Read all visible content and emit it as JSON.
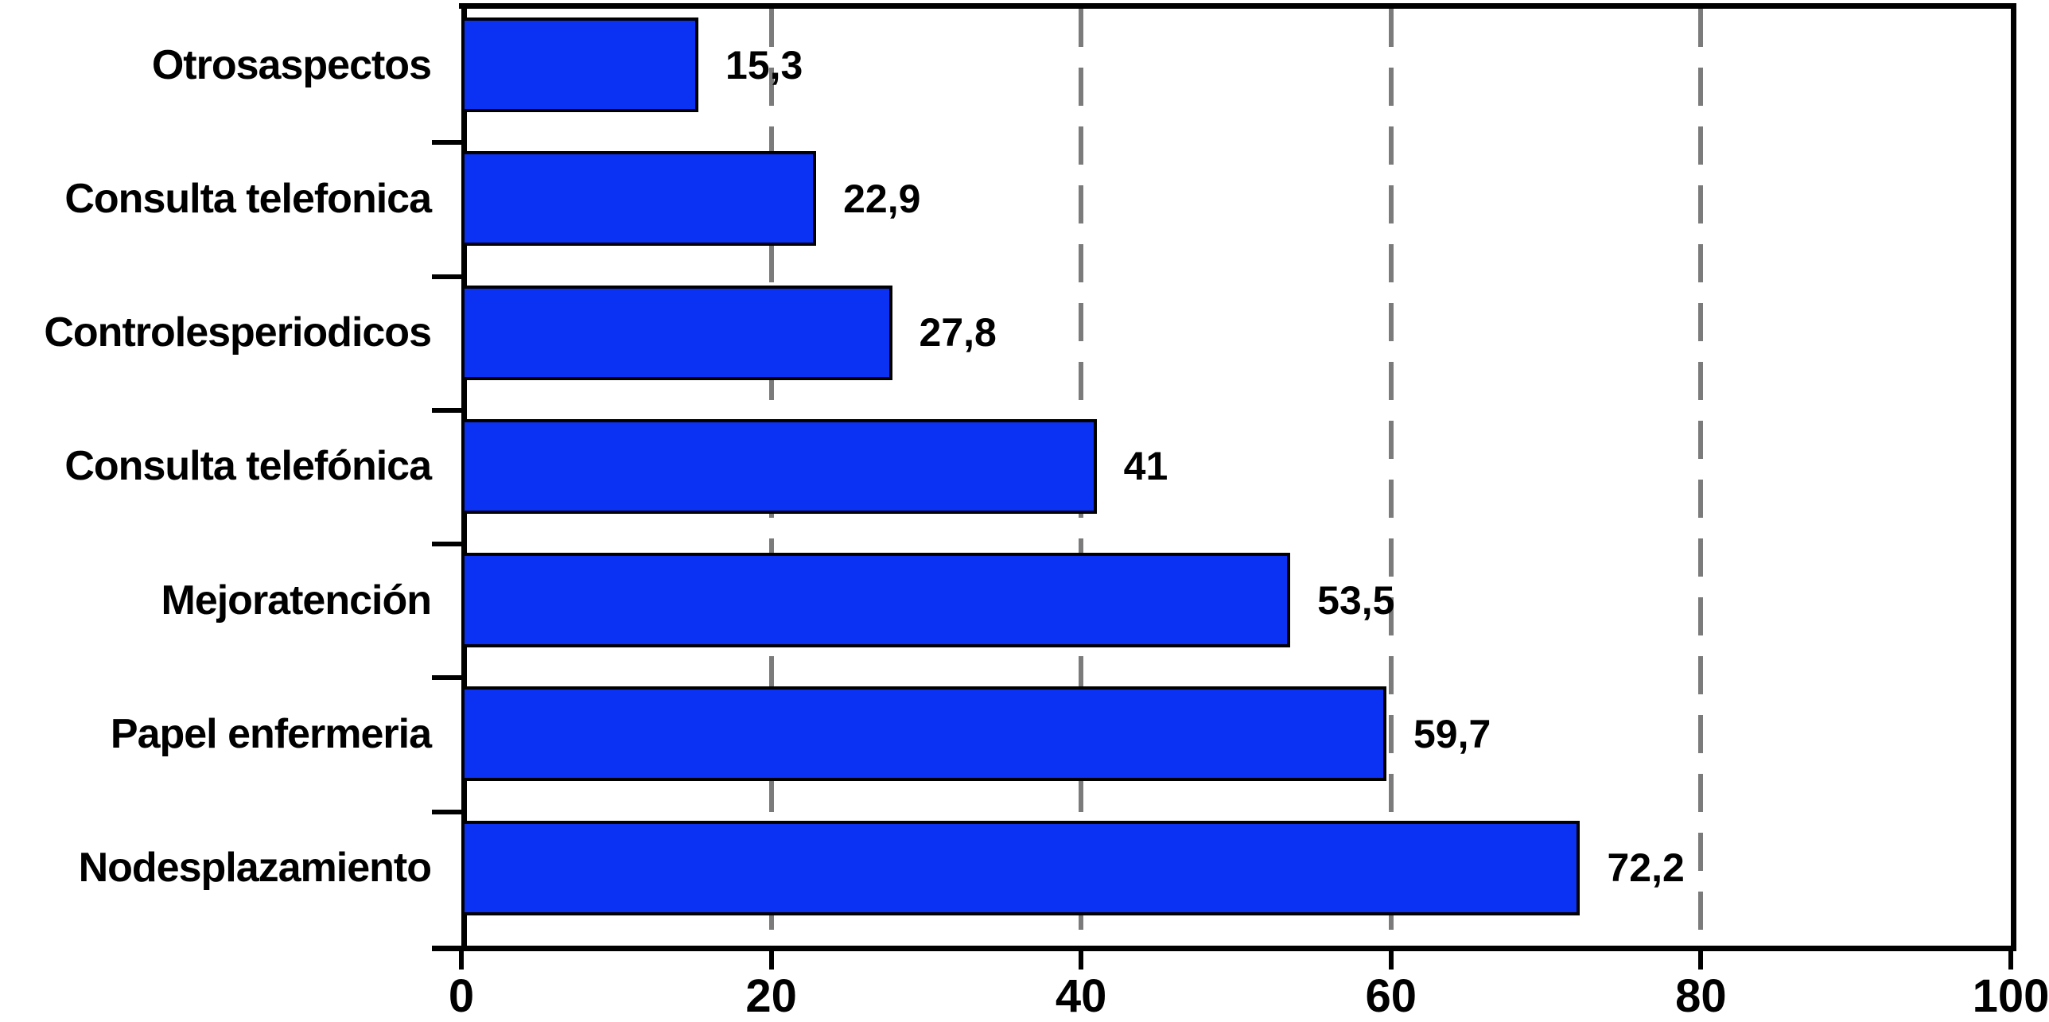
{
  "chart_data": {
    "type": "bar",
    "orientation": "horizontal",
    "title": "",
    "xlabel": "",
    "ylabel": "",
    "categories": [
      "Otrosaspectos",
      "Consulta telefonica",
      "Controlesperiodicos",
      "Consulta telefónica",
      "Mejoratención",
      "Papel enfermeria",
      "Nodesplazamiento"
    ],
    "values": [
      15.3,
      22.9,
      27.8,
      41,
      53.5,
      59.7,
      72.2
    ],
    "value_labels": [
      "15,3",
      "22,9",
      "27,8",
      "41",
      "53,5",
      "59,7",
      "72,2"
    ],
    "xlim": [
      0,
      100
    ],
    "x_ticks": [
      0,
      20,
      40,
      60,
      80,
      100
    ],
    "x_tick_labels": [
      "0",
      "20",
      "40",
      "60",
      "80",
      "100"
    ],
    "grid": "vertical dashed gridlines at 20, 40, 60, 80; solid frame at 100 (right) and top",
    "legend_position": "none",
    "colors": {
      "bar_fill": "#0b31f3",
      "bar_border": "#000000",
      "gridline": "#7b7b7b",
      "axis": "#000000",
      "text": "#000000",
      "background": "#ffffff"
    }
  }
}
